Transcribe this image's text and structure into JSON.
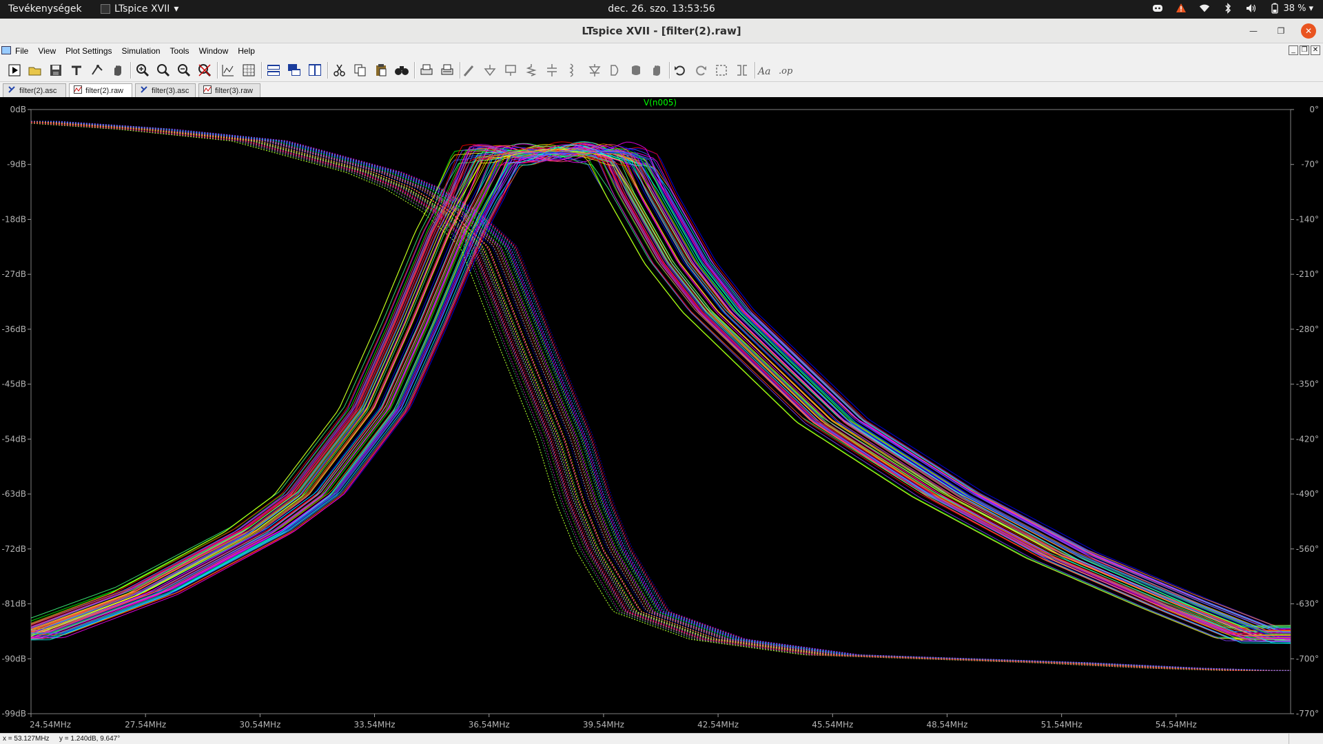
{
  "system_bar": {
    "activities": "Tevékenységek",
    "app_name": "LTspice XVII",
    "clock": "dec. 26. szo.  13:53:56",
    "battery": "38 %",
    "tray_icons": [
      "discord-icon",
      "alert-icon",
      "wifi-icon",
      "bluetooth-icon",
      "volume-icon",
      "battery-icon"
    ]
  },
  "window": {
    "title": "LTspice XVII - [filter(2).raw]",
    "controls": [
      "minimize",
      "maximize",
      "close"
    ]
  },
  "menu": {
    "items": [
      "File",
      "View",
      "Plot Settings",
      "Simulation",
      "Tools",
      "Window",
      "Help"
    ]
  },
  "toolbar": {
    "buttons": [
      "run-icon",
      "open-icon",
      "save-icon",
      "control-panel-icon",
      "halt-icon",
      "pan-icon",
      "zoom-in-icon",
      "zoom-back-icon",
      "zoom-extents-icon",
      "zoom-cancel-icon",
      "autorange-icon",
      "grid-icon",
      "tile-horizontal-icon",
      "cascade-icon",
      "tile-vertical-icon",
      "cut-icon",
      "copy-icon",
      "paste-icon",
      "find-icon",
      "print-icon",
      "print-setup-icon",
      "wire-icon",
      "ground-icon",
      "label-icon",
      "resistor-icon",
      "capacitor-icon",
      "inductor-icon",
      "diode-icon",
      "component-icon",
      "move-icon",
      "drag-icon",
      "undo-icon",
      "redo-icon",
      "rotate-icon",
      "mirror-icon",
      "text-icon",
      "spice-directive-icon"
    ]
  },
  "tabs": [
    {
      "label": "filter(2).asc",
      "kind": "schematic",
      "active": false
    },
    {
      "label": "filter(2).raw",
      "kind": "waveform",
      "active": true
    },
    {
      "label": "filter(3).asc",
      "kind": "schematic",
      "active": false
    },
    {
      "label": "filter(3).raw",
      "kind": "waveform",
      "active": false
    }
  ],
  "chart_data": {
    "type": "line",
    "title": "V(n005)",
    "trace_color": "#00ff00",
    "background": "#000000",
    "x_unit": "MHz",
    "xlim": [
      24.54,
      57.54
    ],
    "x_ticks": [
      "24.54MHz",
      "27.54MHz",
      "30.54MHz",
      "33.54MHz",
      "36.54MHz",
      "39.54MHz",
      "42.54MHz",
      "45.54MHz",
      "48.54MHz",
      "51.54MHz",
      "54.54MHz"
    ],
    "y_left_ticks": [
      "0dB",
      "-9dB",
      "-18dB",
      "-27dB",
      "-36dB",
      "-45dB",
      "-54dB",
      "-63dB",
      "-72dB",
      "-81dB",
      "-90dB",
      "-99dB"
    ],
    "y_right_ticks": [
      "0°",
      "-70°",
      "-140°",
      "-210°",
      "-280°",
      "-350°",
      "-420°",
      "-490°",
      "-560°",
      "-630°",
      "-700°",
      "-770°"
    ],
    "ylim_db": [
      -99,
      0
    ],
    "ylim_phase_deg": [
      -770,
      0
    ],
    "montecarlo_runs": 70,
    "series": [
      {
        "kind": "magnitude",
        "x": [
          24.54,
          27.54,
          30.54,
          31.84,
          33.54,
          34.54,
          35.54,
          36.04,
          36.54,
          37.54,
          38.54,
          39.54,
          40.04,
          40.54,
          41.54,
          42.54,
          45.54,
          48.54,
          51.54,
          54.54,
          56.54
        ],
        "y": [
          -86,
          -79,
          -69,
          -63,
          -49,
          -35,
          -20,
          -14,
          -7.5,
          -7,
          -7,
          -7,
          -8,
          -14,
          -25,
          -33,
          -51,
          -63,
          -73,
          -81,
          -86
        ]
      },
      {
        "kind": "phase",
        "x": [
          24.54,
          27.54,
          30.54,
          33.54,
          34.54,
          35.54,
          36.54,
          37.54,
          38.54,
          39.04,
          39.54,
          40.54,
          42.54,
          45.54,
          48.54,
          51.54,
          54.54,
          56.54
        ],
        "y": [
          -15,
          -25,
          -40,
          -80,
          -100,
          -130,
          -175,
          -300,
          -420,
          -500,
          -560,
          -640,
          -675,
          -695,
          -700,
          -705,
          -712,
          -715
        ]
      }
    ],
    "series_colors": [
      "#ff0000",
      "#0000ff",
      "#00ff00",
      "#ff00ff",
      "#00ffff",
      "#ffff00",
      "#8040ff",
      "#ff8000",
      "#ff4080",
      "#4060ff",
      "#40ff80",
      "#c000c0"
    ]
  },
  "status": {
    "x_readout": "x = 53.127MHz",
    "y_readout": "y = 1.240dB, 9.647°"
  }
}
